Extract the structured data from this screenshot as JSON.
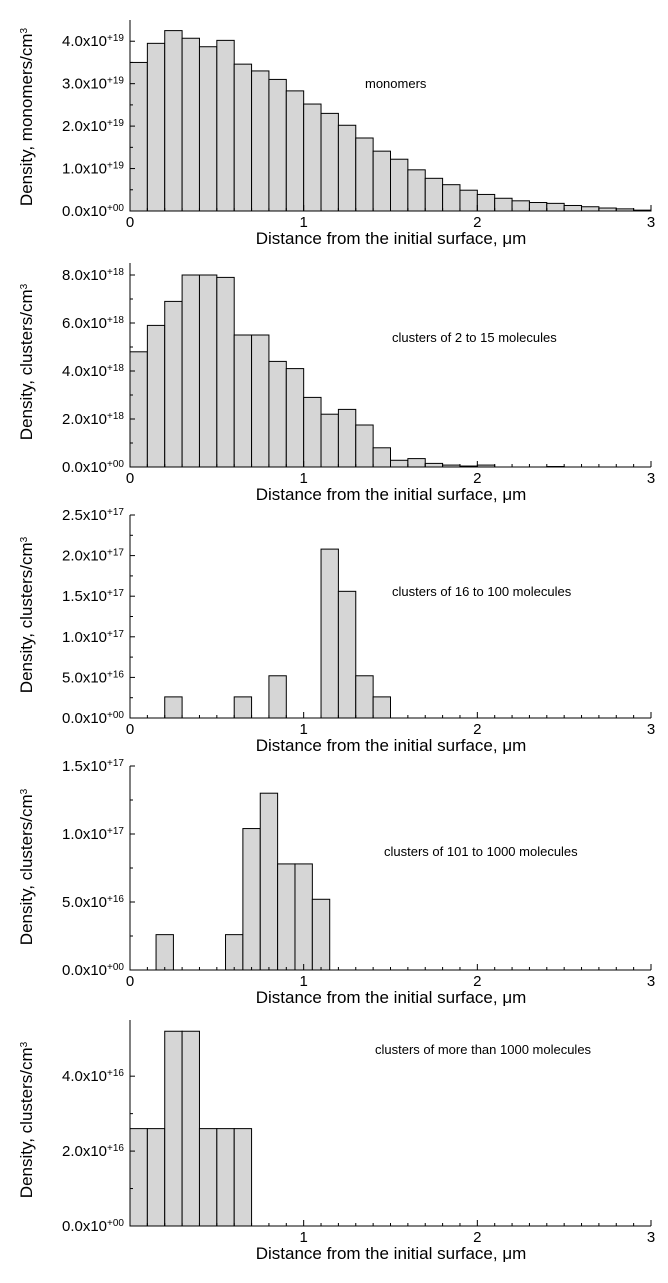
{
  "chart_data": [
    {
      "type": "bar",
      "annotation": "monomers",
      "xlabel": "Distance from the initial surface, μm",
      "ylabel": "Density, monomers/cm3",
      "xlim": [
        0,
        3
      ],
      "ylim": [
        0,
        4.5e+19
      ],
      "x_ticks": [
        "0",
        "1",
        "2",
        "3"
      ],
      "y_ticks": [
        {
          "mantissa": "0.0x10",
          "exp": "+00",
          "value": 0
        },
        {
          "mantissa": "1.0x10",
          "exp": "+19",
          "value": 1e+19
        },
        {
          "mantissa": "2.0x10",
          "exp": "+19",
          "value": 2e+19
        },
        {
          "mantissa": "3.0x10",
          "exp": "+19",
          "value": 3e+19
        },
        {
          "mantissa": "4.0x10",
          "exp": "+19",
          "value": 4e+19
        }
      ],
      "bin_width": 0.1,
      "bin_start": 0.0,
      "values": [
        3.5e+19,
        3.95e+19,
        4.25e+19,
        4.07e+19,
        3.87e+19,
        4.02e+19,
        3.46e+19,
        3.3e+19,
        3.1e+19,
        2.83e+19,
        2.52e+19,
        2.3e+19,
        2.02e+19,
        1.72e+19,
        1.41e+19,
        1.22e+19,
        9.7e+18,
        7.7e+18,
        6.2e+18,
        4.9e+18,
        3.9e+18,
        3e+18,
        2.4e+18,
        2e+18,
        1.8e+18,
        1.3e+18,
        1e+18,
        7e+17,
        5e+17,
        2e+17
      ]
    },
    {
      "type": "bar",
      "annotation": "clusters of 2 to 15 molecules",
      "xlabel": "Distance from the initial surface, μm",
      "ylabel": "Density, clusters/cm3",
      "xlim": [
        0,
        3
      ],
      "ylim": [
        0,
        8.5e+18
      ],
      "x_ticks": [
        "0",
        "1",
        "2",
        "3"
      ],
      "y_ticks": [
        {
          "mantissa": "0.0x10",
          "exp": "+00",
          "value": 0
        },
        {
          "mantissa": "2.0x10",
          "exp": "+18",
          "value": 2e+18
        },
        {
          "mantissa": "4.0x10",
          "exp": "+18",
          "value": 4e+18
        },
        {
          "mantissa": "6.0x10",
          "exp": "+18",
          "value": 6e+18
        },
        {
          "mantissa": "8.0x10",
          "exp": "+18",
          "value": 8e+18
        }
      ],
      "bin_width": 0.1,
      "bin_start": 0.0,
      "values": [
        4.8e+18,
        5.9e+18,
        6.9e+18,
        8e+18,
        8e+18,
        7.9e+18,
        5.5e+18,
        5.5e+18,
        4.4e+18,
        4.1e+18,
        2.9e+18,
        2.2e+18,
        2.4e+18,
        1.75e+18,
        8e+17,
        2.8e+17,
        3.5e+17,
        1.5e+17,
        8e+16,
        4e+16,
        8e+16,
        0.0,
        0.0,
        0.0,
        2e+16,
        0.0,
        0.0,
        0.0,
        0.0,
        0.0
      ]
    },
    {
      "type": "bar",
      "annotation": "clusters of 16 to 100 molecules",
      "xlabel": "Distance from the initial surface, μm",
      "ylabel": "Density, clusters/cm3",
      "xlim": [
        0,
        3
      ],
      "ylim": [
        0,
        2.5e+17
      ],
      "x_ticks": [
        "0",
        "1",
        "2",
        "3"
      ],
      "y_ticks": [
        {
          "mantissa": "0.0x10",
          "exp": "+00",
          "value": 0
        },
        {
          "mantissa": "5.0x10",
          "exp": "+16",
          "value": 5e+16
        },
        {
          "mantissa": "1.0x10",
          "exp": "+17",
          "value": 1e+17
        },
        {
          "mantissa": "1.5x10",
          "exp": "+17",
          "value": 1.5e+17
        },
        {
          "mantissa": "2.0x10",
          "exp": "+17",
          "value": 2e+17
        },
        {
          "mantissa": "2.5x10",
          "exp": "+17",
          "value": 2.5e+17
        }
      ],
      "bin_width": 0.1,
      "bin_start": 0.0,
      "values": [
        0,
        0,
        2.6e+16,
        0,
        0,
        0,
        2.6e+16,
        0,
        5.2e+16,
        0,
        0,
        2.08e+17,
        1.56e+17,
        5.2e+16,
        2.6e+16,
        0,
        0,
        0,
        0,
        0,
        0,
        0,
        0,
        0,
        0,
        0,
        0,
        0,
        0,
        0
      ]
    },
    {
      "type": "bar",
      "annotation": "clusters of 101 to 1000 molecules",
      "xlabel": "Distance from the initial surface, μm",
      "ylabel": "Density, clusters/cm3",
      "xlim": [
        0,
        3
      ],
      "ylim": [
        0,
        1.5e+17
      ],
      "x_ticks": [
        "0",
        "1",
        "2",
        "3"
      ],
      "y_ticks": [
        {
          "mantissa": "0.0x10",
          "exp": "+00",
          "value": 0
        },
        {
          "mantissa": "5.0x10",
          "exp": "+16",
          "value": 5e+16
        },
        {
          "mantissa": "1.0x10",
          "exp": "+17",
          "value": 1e+17
        },
        {
          "mantissa": "1.5x10",
          "exp": "+17",
          "value": 1.5e+17
        }
      ],
      "bin_width": 0.1,
      "bin_start": -0.05,
      "values": [
        0,
        0,
        2.6e+16,
        0,
        0,
        0,
        2.6e+16,
        1.04e+17,
        1.3e+17,
        7.8e+16,
        7.8e+16,
        5.2e+16,
        0,
        0,
        0,
        0,
        0,
        0,
        0,
        0,
        0,
        0,
        0,
        0,
        0,
        0,
        0,
        0,
        0,
        0
      ]
    },
    {
      "type": "bar",
      "annotation": "clusters of more than 1000 molecules",
      "xlabel": "Distance from the initial surface, μm",
      "ylabel": "Density, clusters/cm3",
      "xlim": [
        0,
        3
      ],
      "ylim": [
        0,
        5.5e+16
      ],
      "x_ticks": [
        "1",
        "2",
        "3"
      ],
      "y_ticks": [
        {
          "mantissa": "0.0x10",
          "exp": "+00",
          "value": 0
        },
        {
          "mantissa": "2.0x10",
          "exp": "+16",
          "value": 2e+16
        },
        {
          "mantissa": "4.0x10",
          "exp": "+16",
          "value": 4e+16
        }
      ],
      "bin_width": 0.1,
      "bin_start": 0.0,
      "values": [
        2.6e+16,
        2.6e+16,
        5.2e+16,
        5.2e+16,
        2.6e+16,
        2.6e+16,
        2.6e+16,
        0,
        0,
        0,
        0,
        0,
        0,
        0,
        0,
        0,
        0,
        0,
        0,
        0,
        0,
        0,
        0,
        0,
        0,
        0,
        0,
        0,
        0,
        0
      ]
    }
  ]
}
